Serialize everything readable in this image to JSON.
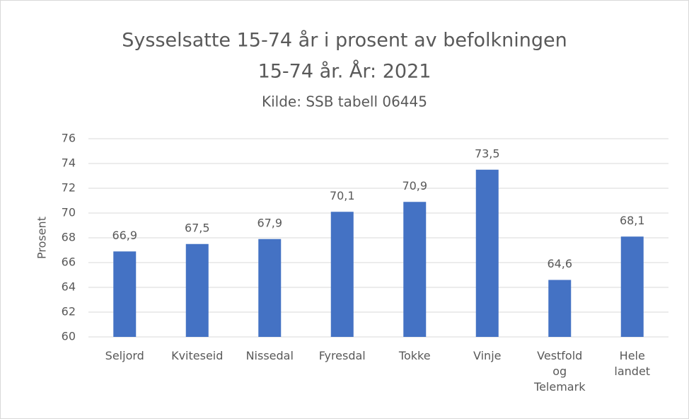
{
  "chart_data": {
    "type": "bar",
    "title": [
      "Sysselsatte 15-74 år i prosent av befolkningen",
      "15-74 år. År: 2021"
    ],
    "subtitle": "Kilde: SSB tabell 06445",
    "y_label": "Prosent",
    "categories": [
      "Seljord",
      "Kviteseid",
      "Nissedal",
      "Fyresdal",
      "Tokke",
      "Vinje",
      "Vestfold og Telemark",
      "Hele landet"
    ],
    "values": [
      66.9,
      67.5,
      67.9,
      70.1,
      70.9,
      73.5,
      64.6,
      68.1
    ],
    "value_labels": [
      "66,9",
      "67,5",
      "67,9",
      "70,1",
      "70,9",
      "73,5",
      "64,6",
      "68,1"
    ],
    "color": "#4472c4",
    "ylim": [
      60,
      76
    ],
    "yticks": [
      60,
      62,
      64,
      66,
      68,
      70,
      72,
      74,
      76
    ],
    "grid": true
  }
}
